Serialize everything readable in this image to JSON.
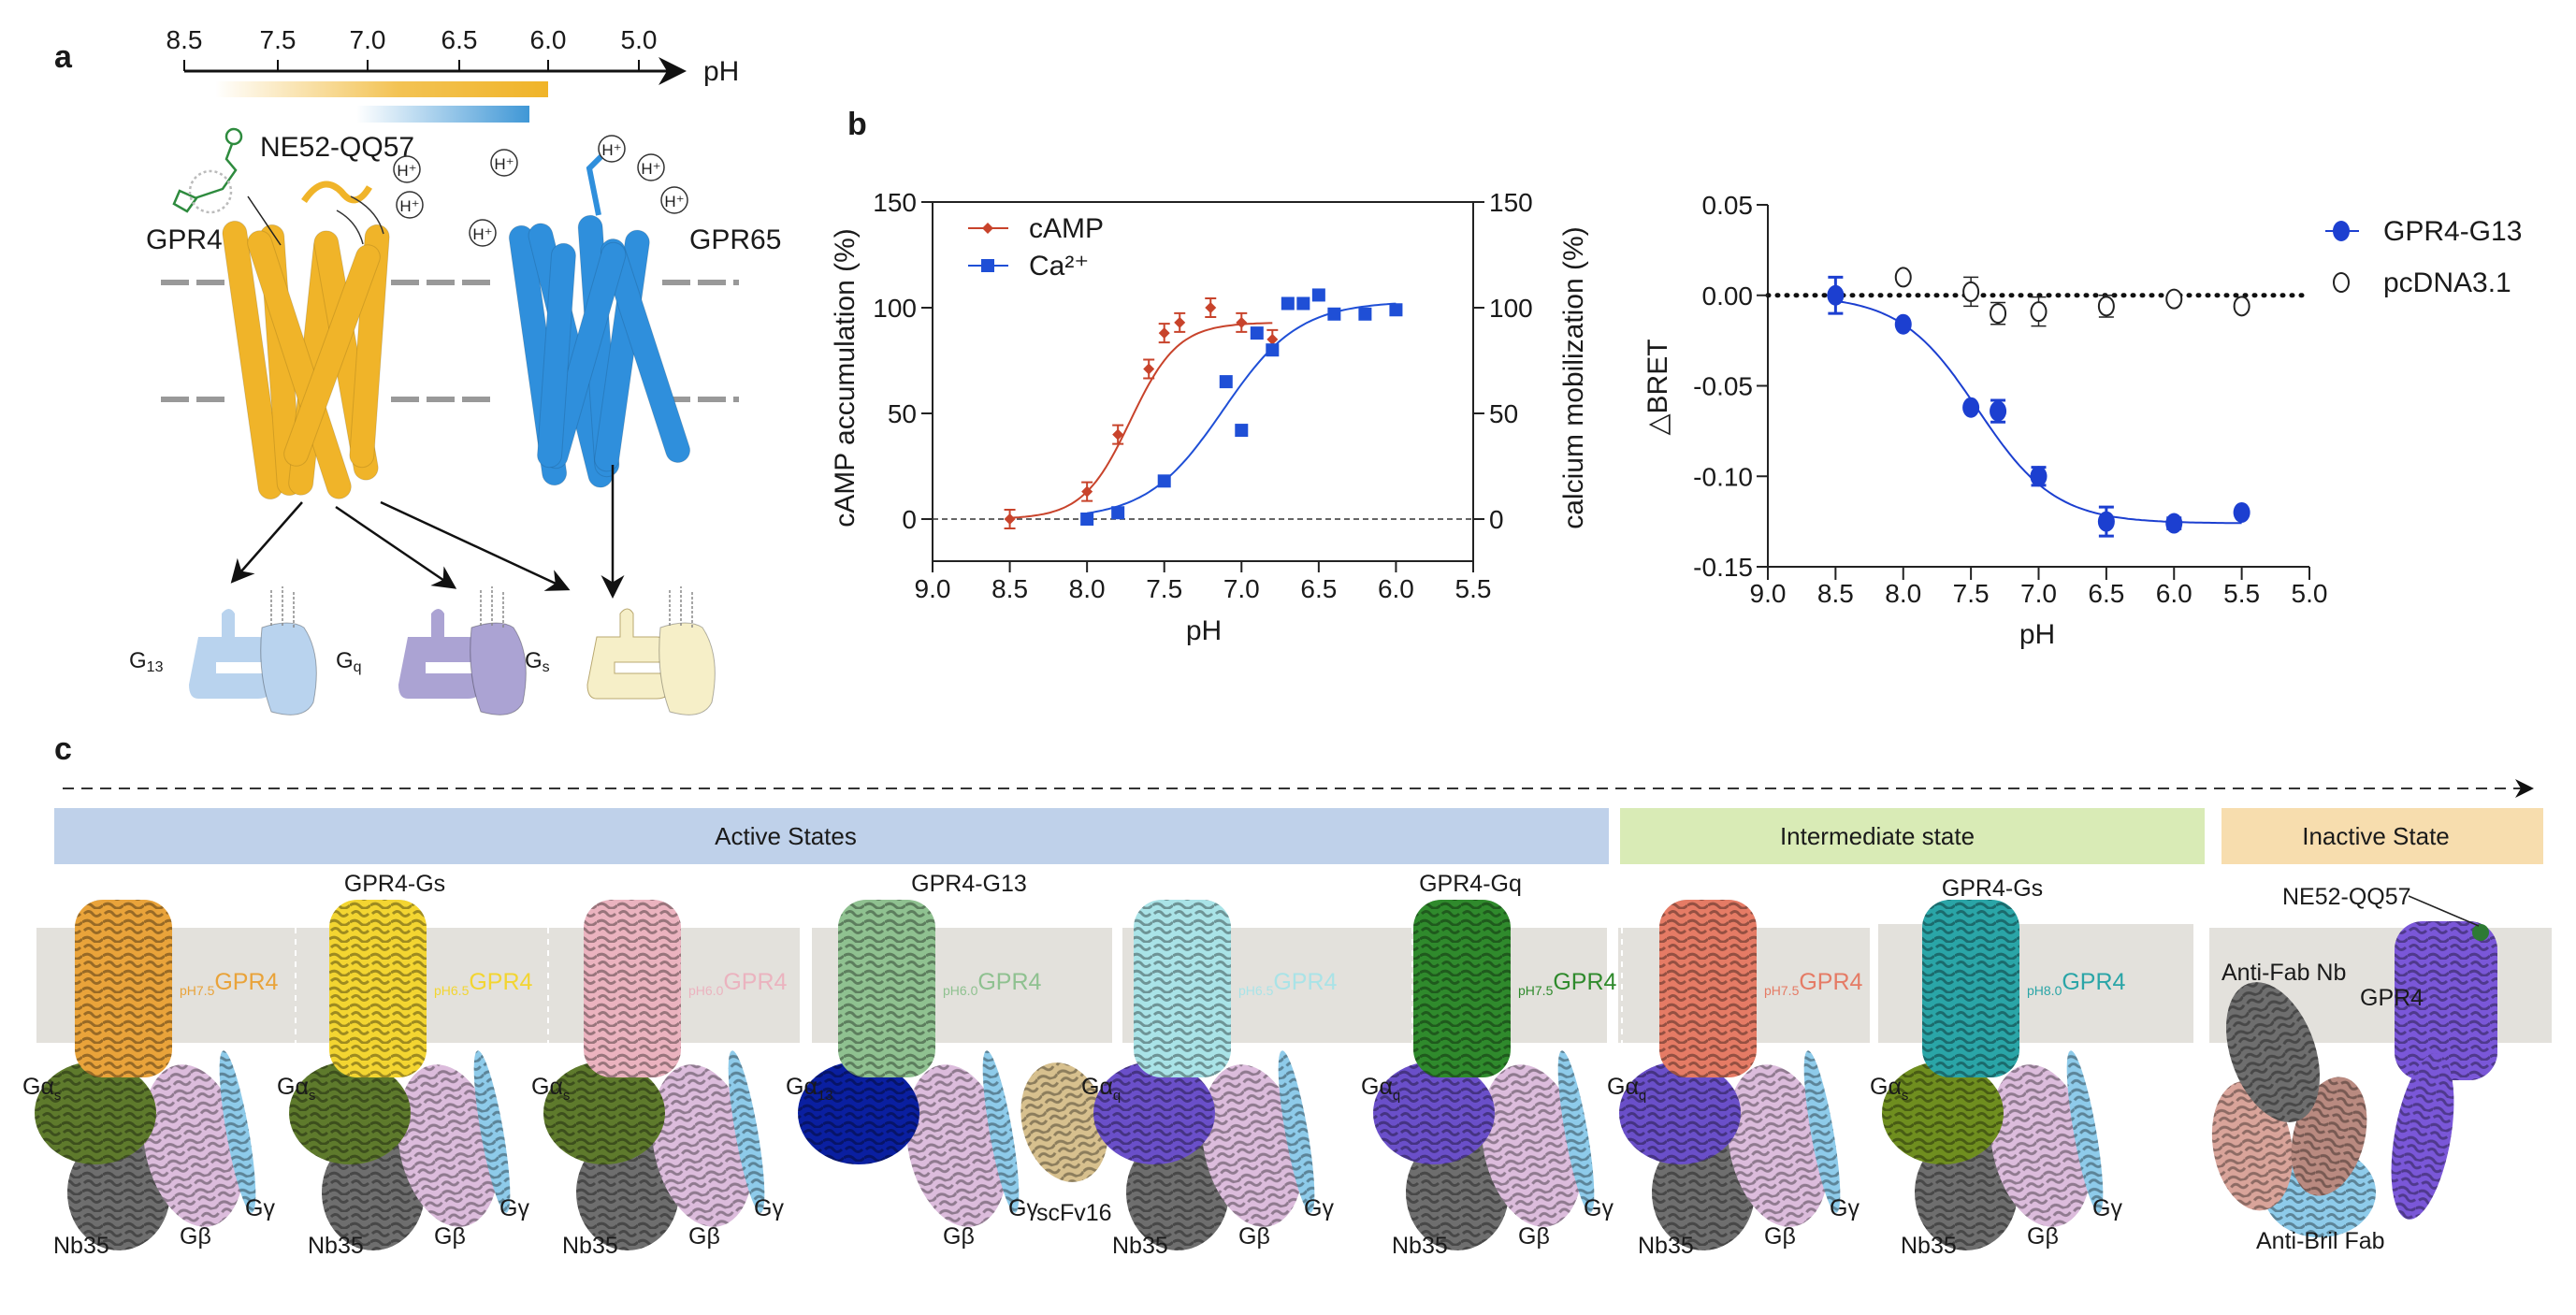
{
  "panel_labels": {
    "a": "a",
    "b": "b",
    "c": "c"
  },
  "panel_a": {
    "ph_axis": {
      "ticks": [
        "8.5",
        "7.5",
        "7.0",
        "6.5",
        "6.0",
        "5.0"
      ],
      "label": "pH"
    },
    "ligand_label": "NE52-QQ57",
    "receptor_labels": [
      "GPR4",
      "GPR65"
    ],
    "proton": "H⁺",
    "receptor_colors": {
      "GPR4": "#f0b429",
      "GPR65": "#2f8fdc"
    },
    "g_proteins": [
      {
        "name": "G",
        "sub": "13",
        "color": "#b9d3ee"
      },
      {
        "name": "G",
        "sub": "q",
        "color": "#aba3d3"
      },
      {
        "name": "G",
        "sub": "s",
        "color": "#f6efc8"
      }
    ]
  },
  "chart_data": [
    {
      "type": "line",
      "xlabel": "pH",
      "ylabel": "cAMP accumulation (%)",
      "ylabel_right": "calcium mobilization (%)",
      "xlim": [
        9.0,
        5.5
      ],
      "ylim": [
        -20,
        150
      ],
      "xticks": [
        "9.0",
        "8.5",
        "8.0",
        "7.5",
        "7.0",
        "6.5",
        "6.0",
        "5.5"
      ],
      "yticks": [
        "0",
        "50",
        "100",
        "150"
      ],
      "yticks_right": [
        "0",
        "50",
        "100",
        "150"
      ],
      "reference_line": 0,
      "legend_position": "top-left",
      "series": [
        {
          "name": "cAMP",
          "color": "#c8432b",
          "marker": "diamond",
          "x": [
            8.5,
            8.0,
            7.8,
            7.6,
            7.5,
            7.4,
            7.2,
            7.0,
            6.8
          ],
          "y": [
            0,
            13,
            40,
            71,
            88,
            93,
            100,
            93,
            85
          ]
        },
        {
          "name": "Ca²⁺",
          "color": "#1f4fd6",
          "marker": "square",
          "x": [
            8.0,
            7.8,
            7.5,
            7.1,
            7.0,
            6.9,
            6.8,
            6.7,
            6.6,
            6.5,
            6.4,
            6.2,
            6.0
          ],
          "y": [
            0,
            3,
            18,
            65,
            42,
            88,
            80,
            102,
            102,
            106,
            97,
            97,
            99
          ]
        }
      ]
    },
    {
      "type": "line",
      "xlabel": "pH",
      "ylabel": "△BRET",
      "xlim": [
        9.0,
        5.0
      ],
      "ylim": [
        -0.15,
        0.05
      ],
      "xticks": [
        "9.0",
        "8.5",
        "8.0",
        "7.5",
        "7.0",
        "6.5",
        "6.0",
        "5.5",
        "5.0"
      ],
      "yticks": [
        "0.05",
        "0.00",
        "-0.05",
        "-0.10",
        "-0.15"
      ],
      "reference_line": 0,
      "legend_position": "top-right",
      "series": [
        {
          "name": "GPR4-G13",
          "color": "#1c3fd0",
          "marker": "filled-circle",
          "x": [
            8.5,
            8.0,
            7.5,
            7.3,
            7.0,
            6.5,
            6.0,
            5.5
          ],
          "y": [
            0.0,
            -0.016,
            -0.062,
            -0.064,
            -0.1,
            -0.125,
            -0.126,
            -0.12
          ],
          "err": [
            0.01,
            0.001,
            0.001,
            0.006,
            0.005,
            0.008,
            0.003,
            0.001
          ]
        },
        {
          "name": "pcDNA3.1",
          "color": "#222222",
          "marker": "open-circle",
          "x": [
            8.0,
            7.5,
            7.3,
            7.0,
            6.5,
            6.0,
            5.5
          ],
          "y": [
            0.01,
            0.002,
            -0.01,
            -0.009,
            -0.006,
            -0.002,
            -0.006
          ],
          "err": [
            0.0,
            0.008,
            0.006,
            0.008,
            0.006,
            0.0,
            0.0
          ]
        }
      ]
    }
  ],
  "panel_c": {
    "states": [
      {
        "label": "Active States",
        "color": "#bfd1ea"
      },
      {
        "label": "Intermediate state",
        "color": "#d9ebb6"
      },
      {
        "label": "Inactive State",
        "color": "#f7ddae"
      }
    ],
    "complex_titles": [
      "GPR4-Gs",
      "GPR4-G13",
      "GPR4-Gq",
      "GPR4-Gs"
    ],
    "structures": [
      {
        "receptor": "GPR4",
        "ph": "pH7.5",
        "color": "#e9a33a",
        "alpha": "Gα",
        "alpha_sub": "s",
        "alpha_color": "#5e7a2c",
        "beta": "Gβ",
        "gamma": "Gγ",
        "nb": "Nb35"
      },
      {
        "receptor": "GPR4",
        "ph": "pH6.5",
        "color": "#f3d531",
        "alpha": "Gα",
        "alpha_sub": "s",
        "alpha_color": "#5e7a2c",
        "beta": "Gβ",
        "gamma": "Gγ",
        "nb": "Nb35"
      },
      {
        "receptor": "GPR4",
        "ph": "pH6.0",
        "color": "#ebb3bf",
        "alpha": "Gα",
        "alpha_sub": "s",
        "alpha_color": "#5e7a2c",
        "beta": "Gβ",
        "gamma": "Gγ",
        "nb": "Nb35"
      },
      {
        "receptor": "GPR4",
        "ph": "pH6.0",
        "color": "#8fc190",
        "alpha": "Gα",
        "alpha_sub": "13",
        "alpha_color": "#0a1fa0",
        "beta": "Gβ",
        "gamma": "Gγ",
        "scfv": "scFv16"
      },
      {
        "receptor": "GPR4",
        "ph": "pH6.5",
        "color": "#a9e3e7",
        "alpha": "Gα",
        "alpha_sub": "q",
        "alpha_color": "#6a4fc9",
        "beta": "Gβ",
        "gamma": "Gγ",
        "nb": "Nb35"
      },
      {
        "receptor": "GPR4",
        "ph": "pH7.5",
        "color": "#2f8a2c",
        "alpha": "Gα",
        "alpha_sub": "q",
        "alpha_color": "#6a4fc9",
        "beta": "Gβ",
        "gamma": "Gγ",
        "nb": "Nb35"
      },
      {
        "receptor": "GPR4",
        "ph": "pH7.5",
        "color": "#e57b65",
        "alpha": "Gα",
        "alpha_sub": "q",
        "alpha_color": "#6a4fc9",
        "beta": "Gβ",
        "gamma": "Gγ",
        "nb": "Nb35"
      },
      {
        "receptor": "GPR4",
        "ph": "pH8.0",
        "color": "#2aa5a7",
        "alpha": "Gα",
        "alpha_sub": "s",
        "alpha_color": "#6f8e1f",
        "beta": "Gβ",
        "gamma": "Gγ",
        "nb": "Nb35"
      }
    ],
    "inactive": {
      "ligand": "NE52-QQ57",
      "receptor": "GPR4",
      "nb": "Anti-Fab Nb",
      "fab": "Anti-Bril Fab",
      "color": "#7a57d8"
    }
  }
}
